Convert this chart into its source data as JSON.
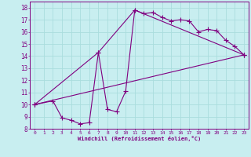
{
  "xlabel": "Windchill (Refroidissement éolien,°C)",
  "bg_color": "#c8eef0",
  "line_color": "#800080",
  "grid_color": "#aadddd",
  "xlim": [
    -0.5,
    23.5
  ],
  "ylim": [
    8,
    18.5
  ],
  "xticks": [
    0,
    1,
    2,
    3,
    4,
    5,
    6,
    7,
    8,
    9,
    10,
    11,
    12,
    13,
    14,
    15,
    16,
    17,
    18,
    19,
    20,
    21,
    22,
    23
  ],
  "yticks": [
    8,
    9,
    10,
    11,
    12,
    13,
    14,
    15,
    16,
    17,
    18
  ],
  "line1_x": [
    0,
    2,
    3,
    4,
    5,
    6,
    7,
    8,
    9,
    10,
    11,
    12,
    13,
    14,
    15,
    16,
    17,
    18,
    19,
    20,
    21,
    22,
    23
  ],
  "line1_y": [
    10,
    10.3,
    8.9,
    8.7,
    8.4,
    8.5,
    14.3,
    9.6,
    9.4,
    11.1,
    17.8,
    17.5,
    17.6,
    17.2,
    16.9,
    17.0,
    16.9,
    16.0,
    16.2,
    16.1,
    15.3,
    14.8,
    14.1
  ],
  "line2_x": [
    0,
    23
  ],
  "line2_y": [
    10,
    14.1
  ],
  "line3_x": [
    0,
    7,
    11,
    23
  ],
  "line3_y": [
    10,
    14.3,
    17.8,
    14.1
  ],
  "markersize": 2.5,
  "linewidth": 0.8
}
